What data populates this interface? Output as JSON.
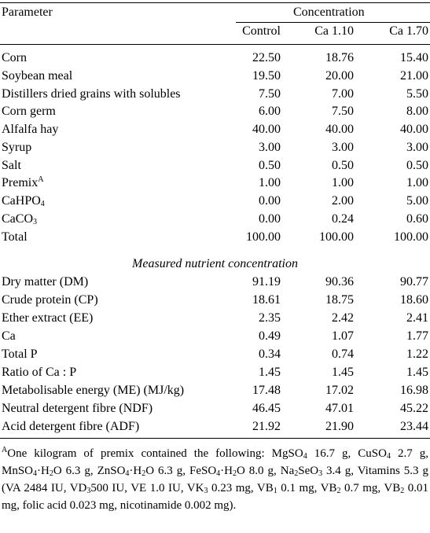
{
  "header": {
    "parameter": "Parameter",
    "concentration": "Concentration",
    "col_control": "Control",
    "col_ca110": "Ca 1.10",
    "col_ca170": "Ca 1.70"
  },
  "ingredients": [
    {
      "label": "Corn",
      "control": "22.50",
      "ca110": "18.76",
      "ca170": "15.40"
    },
    {
      "label": "Soybean meal",
      "control": "19.50",
      "ca110": "20.00",
      "ca170": "21.00"
    },
    {
      "label": "Distillers dried grains with solubles",
      "control": "7.50",
      "ca110": "7.00",
      "ca170": "5.50"
    },
    {
      "label": "Corn germ",
      "control": "6.00",
      "ca110": "7.50",
      "ca170": "8.00"
    },
    {
      "label": "Alfalfa hay",
      "control": "40.00",
      "ca110": "40.00",
      "ca170": "40.00"
    },
    {
      "label": "Syrup",
      "control": "3.00",
      "ca110": "3.00",
      "ca170": "3.00"
    },
    {
      "label": "Salt",
      "control": "0.50",
      "ca110": "0.50",
      "ca170": "0.50"
    },
    {
      "label": "Premix",
      "sup": "A",
      "control": "1.00",
      "ca110": "1.00",
      "ca170": "1.00"
    },
    {
      "label": "CaHPO",
      "sub": "4",
      "control": "0.00",
      "ca110": "2.00",
      "ca170": "5.00"
    },
    {
      "label": "CaCO",
      "sub": "3",
      "control": "0.00",
      "ca110": "0.24",
      "ca170": "0.60"
    },
    {
      "label": "Total",
      "control": "100.00",
      "ca110": "100.00",
      "ca170": "100.00"
    }
  ],
  "measured_heading": "Measured nutrient concentration",
  "nutrients": [
    {
      "label": "Dry matter (DM)",
      "control": "91.19",
      "ca110": "90.36",
      "ca170": "90.77"
    },
    {
      "label": "Crude protein (CP)",
      "control": "18.61",
      "ca110": "18.75",
      "ca170": "18.60"
    },
    {
      "label": "Ether extract (EE)",
      "control": "2.35",
      "ca110": "2.42",
      "ca170": "2.41"
    },
    {
      "label": "Ca",
      "control": "0.49",
      "ca110": "1.07",
      "ca170": "1.77"
    },
    {
      "label": "Total P",
      "control": "0.34",
      "ca110": "0.74",
      "ca170": "1.22"
    },
    {
      "label": "Ratio of Ca : P",
      "control": "1.45",
      "ca110": "1.45",
      "ca170": "1.45"
    },
    {
      "label": "Metabolisable energy (ME) (MJ/kg)",
      "control": "17.48",
      "ca110": "17.02",
      "ca170": "16.98"
    },
    {
      "label": "Neutral detergent fibre (NDF)",
      "control": "46.45",
      "ca110": "47.01",
      "ca170": "45.22"
    },
    {
      "label": "Acid detergent fibre (ADF)",
      "control": "21.92",
      "ca110": "21.90",
      "ca170": "23.44"
    }
  ],
  "footnote": [
    {
      "t": "A",
      "s": "sup"
    },
    {
      "t": "One kilogram of premix contained the following: MgSO"
    },
    {
      "t": "4",
      "s": "sub"
    },
    {
      "t": " 16.7 g, CuSO"
    },
    {
      "t": "4",
      "s": "sub"
    },
    {
      "t": " 2.7 g, MnSO"
    },
    {
      "t": "4",
      "s": "sub"
    },
    {
      "t": "·H"
    },
    {
      "t": "2",
      "s": "sub"
    },
    {
      "t": "O 6.3 g, ZnSO"
    },
    {
      "t": "4",
      "s": "sub"
    },
    {
      "t": "·H"
    },
    {
      "t": "2",
      "s": "sub"
    },
    {
      "t": "O 6.3 g, FeSO"
    },
    {
      "t": "4",
      "s": "sub"
    },
    {
      "t": "·H"
    },
    {
      "t": "2",
      "s": "sub"
    },
    {
      "t": "O 8.0 g, Na"
    },
    {
      "t": "2",
      "s": "sub"
    },
    {
      "t": "SeO"
    },
    {
      "t": "3",
      "s": "sub"
    },
    {
      "t": " 3.4 g, Vitamins 5.3 g (VA 2484 IU, VD"
    },
    {
      "t": "3",
      "s": "sub"
    },
    {
      "t": "500 IU, VE 1.0 IU, VK"
    },
    {
      "t": "3",
      "s": "sub"
    },
    {
      "t": " 0.23 mg, VB"
    },
    {
      "t": "1",
      "s": "sub"
    },
    {
      "t": " 0.1 mg, VB"
    },
    {
      "t": "2",
      "s": "sub"
    },
    {
      "t": " 0.7 mg, VB"
    },
    {
      "t": "2",
      "s": "sub"
    },
    {
      "t": " 0.01 mg, folic acid 0.023 mg, nicotinamide 0.002 mg)."
    }
  ]
}
